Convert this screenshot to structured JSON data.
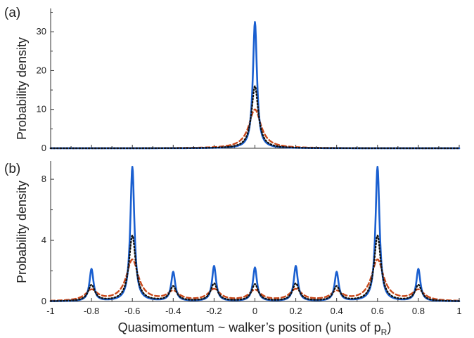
{
  "chart_data": [
    {
      "type": "line",
      "panel_label": "(a)",
      "ylabel": "Probability density",
      "xlim": [
        -1,
        1
      ],
      "ylim": [
        0,
        36
      ],
      "yticks": [
        0,
        10,
        20,
        30
      ],
      "ytick_labels": [
        "0",
        "10",
        "20",
        "30"
      ],
      "xtick_labels_shown": false,
      "peaks": [
        0
      ],
      "series": [
        {
          "style": "solid",
          "color": "#1a5fd0",
          "peak_heights": [
            32.5
          ],
          "width": 0.012
        },
        {
          "style": "dotted",
          "color": "#111111",
          "peak_heights": [
            16
          ],
          "width": 0.02
        },
        {
          "style": "dashed",
          "color": "#c8481a",
          "peak_heights": [
            10
          ],
          "width": 0.036
        }
      ]
    },
    {
      "type": "line",
      "panel_label": "(b)",
      "ylabel": "Probability density",
      "xlabel": "Quasimomentum ~ walker’s position (units of p",
      "xlabel_subscript": "R",
      "xlabel_suffix": ")",
      "xlim": [
        -1,
        1
      ],
      "ylim": [
        0,
        9.2
      ],
      "yticks": [
        0,
        4,
        8
      ],
      "ytick_labels": [
        "0",
        "4",
        "8"
      ],
      "xticks": [
        -1,
        -0.8,
        -0.6,
        -0.4,
        -0.2,
        0,
        0.2,
        0.4,
        0.6,
        0.8,
        1
      ],
      "xtick_labels": [
        "-1",
        "-0.8",
        "-0.6",
        "-0.4",
        "-0.2",
        "0",
        "0.2",
        "0.4",
        "0.6",
        "0.8",
        "1"
      ],
      "peaks": [
        -0.8,
        -0.6,
        -0.4,
        -0.2,
        0,
        0.2,
        0.4,
        0.6,
        0.8
      ],
      "series": [
        {
          "style": "solid",
          "color": "#1a5fd0",
          "peak_heights": [
            2.1,
            8.8,
            1.9,
            2.3,
            2.2,
            2.3,
            1.9,
            8.8,
            2.1
          ],
          "width": 0.012
        },
        {
          "style": "dotted",
          "color": "#111111",
          "peak_heights": [
            1.05,
            4.3,
            0.95,
            1.15,
            1.1,
            1.15,
            0.95,
            4.3,
            1.05
          ],
          "width": 0.02
        },
        {
          "style": "dashed",
          "color": "#c8481a",
          "peak_heights": [
            0.7,
            2.7,
            0.6,
            0.75,
            0.7,
            0.75,
            0.6,
            2.7,
            0.7
          ],
          "width": 0.036
        }
      ]
    }
  ]
}
